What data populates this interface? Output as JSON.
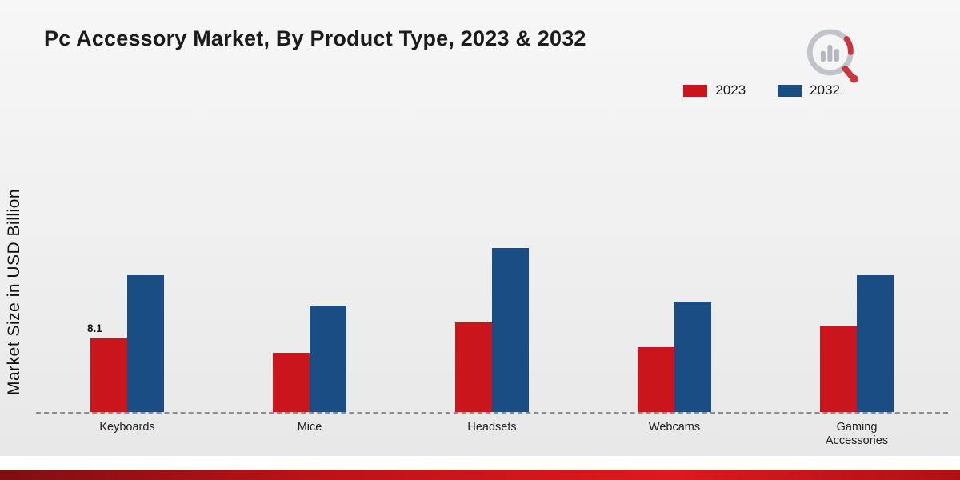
{
  "chart_data": {
    "type": "bar",
    "title": "Pc Accessory Market, By Product Type, 2023 & 2032",
    "xlabel": "",
    "ylabel": "Market Size in USD Billion",
    "categories": [
      "Keyboards",
      "Mice",
      "Headsets",
      "Webcams",
      "Gaming Accessories"
    ],
    "series": [
      {
        "name": "2023",
        "color": "#c9151b",
        "values": [
          8.1,
          6.5,
          9.9,
          7.1,
          9.4
        ]
      },
      {
        "name": "2032",
        "color": "#1b4d85",
        "values": [
          15.1,
          11.7,
          18.1,
          12.2,
          15.1
        ]
      }
    ],
    "ylim": [
      0,
      20
    ],
    "grid": false,
    "legend_position": "top-right",
    "baseline_style": "dashed",
    "bar_label": {
      "series_index": 0,
      "category_index": 0,
      "text": "8.1"
    }
  }
}
